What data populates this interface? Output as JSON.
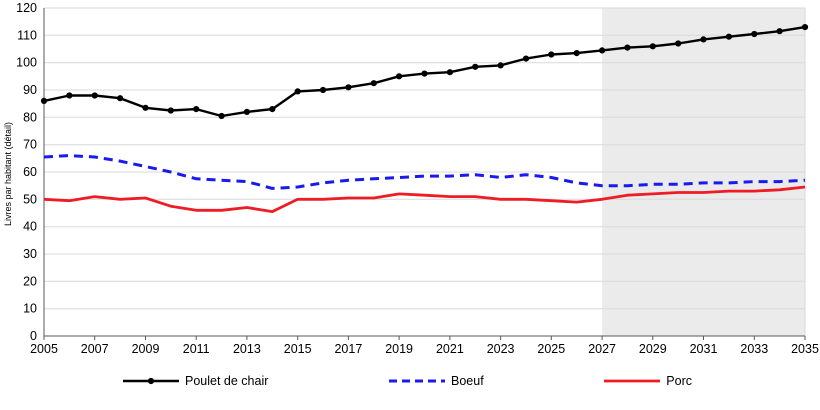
{
  "chart_data": {
    "type": "line",
    "title": "",
    "xlabel": "",
    "ylabel": "Livres par habitant (détail)",
    "ylim": [
      0,
      120
    ],
    "ytick_step": 10,
    "grid": true,
    "legend_position": "bottom",
    "forecast_shade_start": 2027,
    "colors": {
      "shade": "#ebebeb",
      "grid": "#d9d9d9",
      "axis": "#595959",
      "tick_text": "#000000"
    },
    "x": [
      2005,
      2006,
      2007,
      2008,
      2009,
      2010,
      2011,
      2012,
      2013,
      2014,
      2015,
      2016,
      2017,
      2018,
      2019,
      2020,
      2021,
      2022,
      2023,
      2024,
      2025,
      2026,
      2027,
      2028,
      2029,
      2030,
      2031,
      2032,
      2033,
      2034,
      2035
    ],
    "xtick_labels": [
      "2005",
      "2007",
      "2009",
      "2011",
      "2013",
      "2015",
      "2017",
      "2019",
      "2021",
      "2023",
      "2025",
      "2027",
      "2029",
      "2031",
      "2033",
      "2035"
    ],
    "series": [
      {
        "name": "Poulet de chair",
        "color": "#000000",
        "style": "solid",
        "marker": true,
        "values": [
          86,
          88,
          88,
          87,
          83.5,
          82.5,
          83,
          80.5,
          82,
          83,
          89.5,
          90,
          91,
          92.5,
          95,
          96,
          96.5,
          98.5,
          99,
          101.5,
          103,
          103.5,
          104.5,
          105.5,
          106,
          107,
          108.5,
          109.5,
          110.5,
          111.5,
          113
        ]
      },
      {
        "name": "Boeuf",
        "color": "#1a1aee",
        "style": "dashed",
        "marker": false,
        "values": [
          65.5,
          66,
          65.5,
          64,
          62,
          60,
          57.5,
          57,
          56.5,
          54,
          54.5,
          56,
          57,
          57.5,
          58,
          58.5,
          58.5,
          59,
          58,
          59,
          58,
          56,
          55,
          55,
          55.5,
          55.5,
          56,
          56,
          56.5,
          56.5,
          57
        ]
      },
      {
        "name": "Porc",
        "color": "#ee1c25",
        "style": "solid",
        "marker": false,
        "values": [
          50,
          49.5,
          51,
          50,
          50.5,
          47.5,
          46,
          46,
          47,
          45.5,
          50,
          50,
          50.5,
          50.5,
          52,
          51.5,
          51,
          51,
          50,
          50,
          49.5,
          49,
          50,
          51.5,
          52,
          52.5,
          52.5,
          53,
          53,
          53.5,
          54.5
        ]
      }
    ]
  }
}
